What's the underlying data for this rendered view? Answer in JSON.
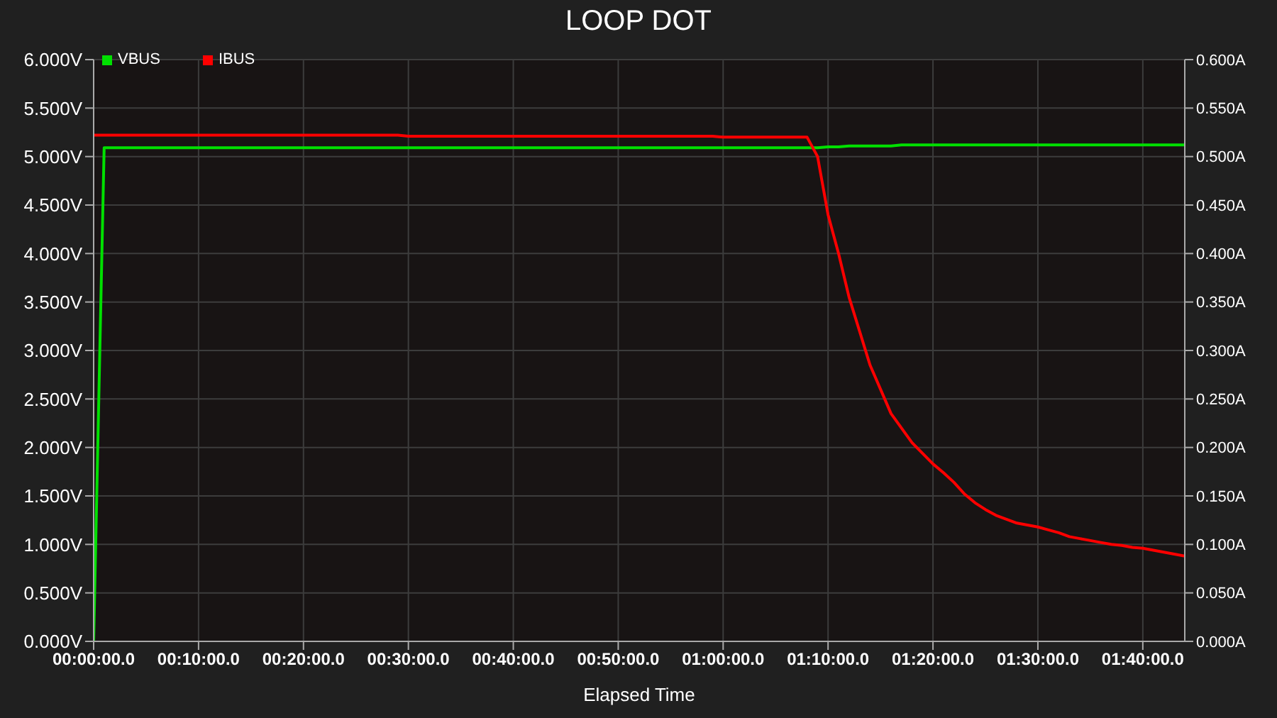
{
  "chart_data": {
    "type": "line",
    "title": "LOOP DOT",
    "xlabel": "Elapsed Time",
    "categories": [
      "00:00:00.0",
      null,
      null,
      null,
      null,
      null,
      null,
      null,
      null,
      null,
      "00:10:00.0",
      null,
      null,
      null,
      null,
      null,
      null,
      null,
      null,
      null,
      "00:20:00.0",
      null,
      null,
      null,
      null,
      null,
      null,
      null,
      null,
      null,
      "00:30:00.0",
      null,
      null,
      null,
      null,
      null,
      null,
      null,
      null,
      null,
      "00:40:00.0",
      null,
      null,
      null,
      null,
      null,
      null,
      null,
      null,
      null,
      "00:50:00.0",
      null,
      null,
      null,
      null,
      null,
      null,
      null,
      null,
      null,
      "01:00:00.0",
      null,
      null,
      null,
      null,
      null,
      null,
      null,
      null,
      null,
      "01:10:00.0",
      null,
      null,
      null,
      null,
      null,
      null,
      null,
      null,
      null,
      "01:20:00.0",
      null,
      null,
      null,
      null,
      null,
      null,
      null,
      null,
      null,
      "01:30:00.0",
      null,
      null,
      null,
      null,
      null,
      null,
      null,
      null,
      null,
      "01:40:00.0",
      null,
      null,
      null,
      null
    ],
    "ylim": [
      0,
      6
    ],
    "yticks": [
      {
        "value": 0,
        "label": "0.000V"
      },
      {
        "value": 0.5,
        "label": "0.500V"
      },
      {
        "value": 1,
        "label": "1.000V"
      },
      {
        "value": 1.5,
        "label": "1.500V"
      },
      {
        "value": 2,
        "label": "2.000V"
      },
      {
        "value": 2.5,
        "label": "2.500V"
      },
      {
        "value": 3,
        "label": "3.000V"
      },
      {
        "value": 3.5,
        "label": "3.500V"
      },
      {
        "value": 4,
        "label": "4.000V"
      },
      {
        "value": 4.5,
        "label": "4.500V"
      },
      {
        "value": 5,
        "label": "5.000V"
      },
      {
        "value": 5.5,
        "label": "5.500V"
      },
      {
        "value": 6,
        "label": "6.000V"
      }
    ],
    "y2lim": [
      0,
      0.6
    ],
    "y2ticks": [
      {
        "value": 0,
        "label": "0.000A"
      },
      {
        "value": 0.05,
        "label": "0.050A"
      },
      {
        "value": 0.1,
        "label": "0.100A"
      },
      {
        "value": 0.15,
        "label": "0.150A"
      },
      {
        "value": 0.2,
        "label": "0.200A"
      },
      {
        "value": 0.25,
        "label": "0.250A"
      },
      {
        "value": 0.3,
        "label": "0.300A"
      },
      {
        "value": 0.35,
        "label": "0.350A"
      },
      {
        "value": 0.4,
        "label": "0.400A"
      },
      {
        "value": 0.45,
        "label": "0.450A"
      },
      {
        "value": 0.5,
        "label": "0.500A"
      },
      {
        "value": 0.55,
        "label": "0.550A"
      },
      {
        "value": 0.6,
        "label": "0.600A"
      }
    ],
    "grid": true,
    "legend": "top left",
    "marker": "none",
    "line_style": "solid",
    "series": [
      {
        "name": "VBUS",
        "color": "#00e000",
        "values": [
          0,
          5.09,
          5.09,
          5.09,
          5.09,
          5.09,
          5.09,
          5.09,
          5.09,
          5.09,
          5.09,
          5.09,
          5.09,
          5.09,
          5.09,
          5.09,
          5.09,
          5.09,
          5.09,
          5.09,
          5.09,
          5.09,
          5.09,
          5.09,
          5.09,
          5.09,
          5.09,
          5.09,
          5.09,
          5.09,
          5.09,
          5.09,
          5.09,
          5.09,
          5.09,
          5.09,
          5.09,
          5.09,
          5.09,
          5.09,
          5.09,
          5.09,
          5.09,
          5.09,
          5.09,
          5.09,
          5.09,
          5.09,
          5.09,
          5.09,
          5.09,
          5.09,
          5.09,
          5.09,
          5.09,
          5.09,
          5.09,
          5.09,
          5.09,
          5.09,
          5.09,
          5.09,
          5.09,
          5.09,
          5.09,
          5.09,
          5.09,
          5.09,
          5.09,
          5.09,
          5.1,
          5.1,
          5.11,
          5.11,
          5.11,
          5.11,
          5.11,
          5.12,
          5.12,
          5.12,
          5.12,
          5.12,
          5.12,
          5.12,
          5.12,
          5.12,
          5.12,
          5.12,
          5.12,
          5.12,
          5.12,
          5.12,
          5.12,
          5.12,
          5.12,
          5.12,
          5.12,
          5.12,
          5.12,
          5.12,
          5.12,
          5.12,
          5.12,
          5.12,
          5.12
        ]
      },
      {
        "name": "IBUS",
        "color": "#ff0000",
        "axis": "y2",
        "values": [
          0.522,
          0.522,
          0.522,
          0.522,
          0.522,
          0.522,
          0.522,
          0.522,
          0.522,
          0.522,
          0.522,
          0.522,
          0.522,
          0.522,
          0.522,
          0.522,
          0.522,
          0.522,
          0.522,
          0.522,
          0.522,
          0.522,
          0.522,
          0.522,
          0.522,
          0.522,
          0.522,
          0.522,
          0.522,
          0.522,
          0.521,
          0.521,
          0.521,
          0.521,
          0.521,
          0.521,
          0.521,
          0.521,
          0.521,
          0.521,
          0.521,
          0.521,
          0.521,
          0.521,
          0.521,
          0.521,
          0.521,
          0.521,
          0.521,
          0.521,
          0.521,
          0.521,
          0.521,
          0.521,
          0.521,
          0.521,
          0.521,
          0.521,
          0.521,
          0.521,
          0.52,
          0.52,
          0.52,
          0.52,
          0.52,
          0.52,
          0.52,
          0.52,
          0.52,
          0.5,
          0.44,
          0.4,
          0.355,
          0.32,
          0.285,
          0.26,
          0.235,
          0.22,
          0.205,
          0.194,
          0.183,
          0.174,
          0.164,
          0.152,
          0.143,
          0.136,
          0.13,
          0.126,
          0.122,
          0.12,
          0.118,
          0.115,
          0.112,
          0.108,
          0.106,
          0.104,
          0.102,
          0.1,
          0.099,
          0.097,
          0.096,
          0.094,
          0.092,
          0.09,
          0.088
        ]
      }
    ]
  }
}
